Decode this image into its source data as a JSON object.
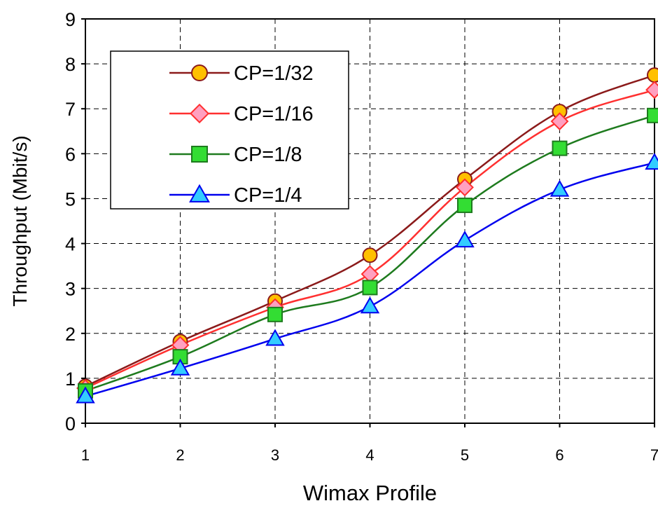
{
  "chart_data": {
    "type": "line",
    "title": "",
    "xlabel": "Wimax Profile",
    "ylabel": "Throughput (Mbit/s)",
    "x": [
      1,
      2,
      3,
      4,
      5,
      6,
      7
    ],
    "xticks": [
      "1",
      "2",
      "3",
      "4",
      "5",
      "6",
      "7"
    ],
    "yticks": [
      "0",
      "1",
      "2",
      "3",
      "4",
      "5",
      "6",
      "7",
      "8",
      "9"
    ],
    "xlim": [
      1,
      7
    ],
    "ylim": [
      0,
      9
    ],
    "grid": true,
    "legend_position": "top-left",
    "series": [
      {
        "name": "CP=1/32",
        "values": [
          0.82,
          1.82,
          2.72,
          3.74,
          5.43,
          6.94,
          7.75
        ],
        "line_color": "#8B1A1A",
        "marker": "circle",
        "marker_fill": "#FFC000",
        "marker_stroke": "#8B1A1A"
      },
      {
        "name": "CP=1/16",
        "values": [
          0.78,
          1.74,
          2.58,
          3.32,
          5.25,
          6.72,
          7.42
        ],
        "line_color": "#FF3030",
        "marker": "diamond",
        "marker_fill": "#FFA0C0",
        "marker_stroke": "#FF3030"
      },
      {
        "name": "CP=1/8",
        "values": [
          0.72,
          1.48,
          2.42,
          3.02,
          4.85,
          6.12,
          6.85
        ],
        "line_color": "#1E7B1E",
        "marker": "square",
        "marker_fill": "#33DD33",
        "marker_stroke": "#1E7B1E"
      },
      {
        "name": "CP=1/4",
        "values": [
          0.6,
          1.22,
          1.88,
          2.6,
          4.07,
          5.2,
          5.8
        ],
        "line_color": "#0000EE",
        "marker": "triangle",
        "marker_fill": "#33CCFF",
        "marker_stroke": "#0000EE"
      }
    ]
  }
}
